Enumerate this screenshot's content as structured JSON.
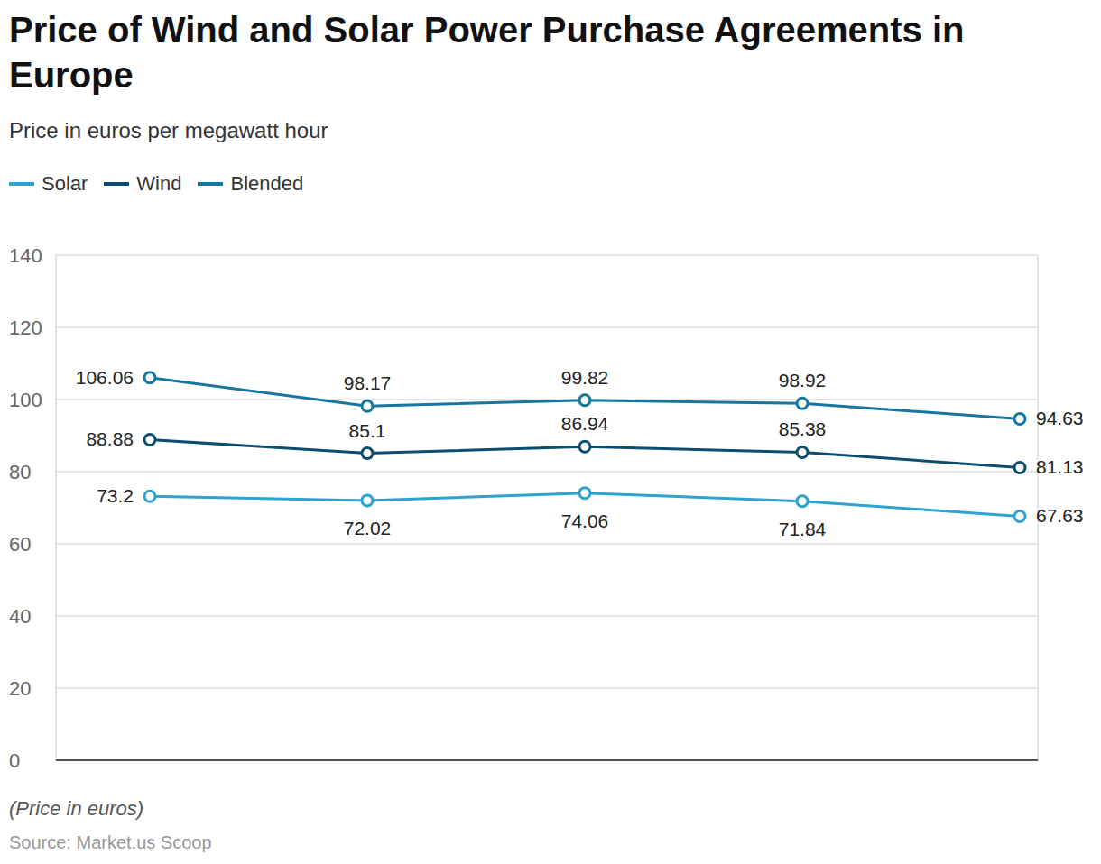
{
  "chart_data": {
    "type": "line",
    "title": "Price of Wind and Solar Power Purchase Agreements in Europe",
    "subtitle": "Price in euros per megawatt hour",
    "note": "(Price in euros)",
    "source": "Source: Market.us Scoop",
    "categories": [
      null,
      null,
      null,
      null,
      null
    ],
    "series": [
      {
        "name": "Solar",
        "color": "#2ea3cf",
        "values": [
          73.2,
          72.02,
          74.06,
          71.84,
          67.63
        ]
      },
      {
        "name": "Wind",
        "color": "#0b4d6e",
        "values": [
          88.88,
          85.1,
          86.94,
          85.38,
          81.13
        ]
      },
      {
        "name": "Blended",
        "color": "#1577a0",
        "values": [
          106.06,
          98.17,
          99.82,
          98.92,
          94.63
        ]
      }
    ],
    "ylim": [
      0,
      140
    ],
    "yticks": [
      0,
      20,
      40,
      60,
      80,
      100,
      120,
      140
    ],
    "grid": true,
    "legend": "top-left",
    "data_labels": true,
    "tick_labels": "y",
    "marker": "circle"
  }
}
